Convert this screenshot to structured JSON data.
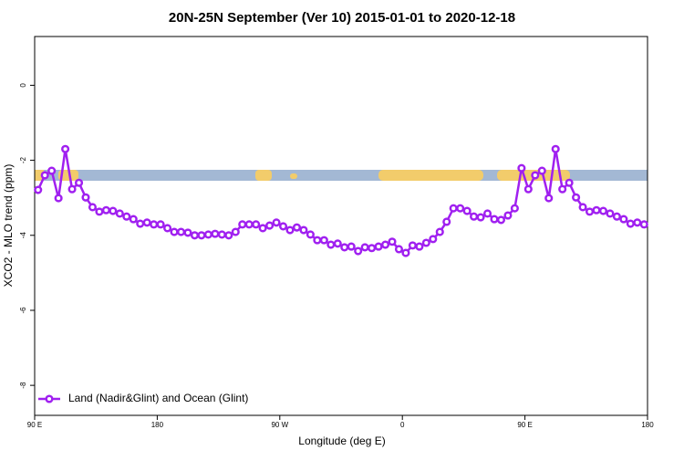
{
  "chart_data": {
    "type": "line",
    "title": "20N-25N September (Ver 10)   2015-01-01 to 2020-12-18",
    "x_label": "Longitude (deg E)",
    "y_label": "XCO2 - MLO trend (ppm)",
    "xlim": [
      90,
      540
    ],
    "ylim": [
      -8.8,
      1.3
    ],
    "xticks": [
      {
        "value": 90,
        "label": "90 E"
      },
      {
        "value": 180,
        "label": "180"
      },
      {
        "value": 270,
        "label": "90 W"
      },
      {
        "value": 360,
        "label": "0"
      },
      {
        "value": 450,
        "label": "90 E"
      },
      {
        "value": 540,
        "label": "180"
      }
    ],
    "yticks": [
      0,
      -2,
      -4,
      -6,
      -8
    ],
    "legend": "bottom-left",
    "x": [
      92.5,
      97.5,
      102.5,
      107.5,
      112.5,
      117.5,
      122.5,
      127.5,
      132.5,
      137.5,
      142.5,
      147.5,
      152.5,
      157.5,
      162.5,
      167.5,
      172.5,
      177.5,
      182.5,
      187.5,
      192.5,
      197.5,
      202.5,
      207.5,
      212.5,
      217.5,
      222.5,
      227.5,
      232.5,
      237.5,
      242.5,
      247.5,
      252.5,
      257.5,
      262.5,
      267.5,
      272.5,
      277.5,
      282.5,
      287.5,
      292.5,
      297.5,
      302.5,
      307.5,
      312.5,
      317.5,
      322.5,
      327.5,
      332.5,
      337.5,
      342.5,
      347.5,
      352.5,
      357.5,
      362.5,
      367.5,
      372.5,
      377.5,
      382.5,
      387.5,
      392.5,
      397.5,
      402.5,
      407.5,
      412.5,
      417.5,
      422.5,
      427.5,
      432.5,
      437.5,
      442.5,
      447.5,
      452.5,
      457.5,
      462.5,
      467.5,
      472.5,
      477.5,
      482.5,
      487.5,
      492.5,
      497.5,
      502.5,
      507.5,
      512.5,
      517.5,
      522.5,
      527.5,
      532.5,
      537.5
    ],
    "series": [
      {
        "name": "Land (Nadir&Glint) and Ocean (Glint)",
        "color": "#a020f0",
        "values": [
          -2.79,
          -2.4,
          -2.28,
          -3.01,
          -1.7,
          -2.77,
          -2.6,
          -2.99,
          -3.25,
          -3.37,
          -3.33,
          -3.35,
          -3.42,
          -3.5,
          -3.57,
          -3.69,
          -3.66,
          -3.71,
          -3.71,
          -3.81,
          -3.91,
          -3.91,
          -3.93,
          -4.0,
          -4.0,
          -3.98,
          -3.96,
          -3.98,
          -4.0,
          -3.91,
          -3.71,
          -3.71,
          -3.71,
          -3.81,
          -3.74,
          -3.66,
          -3.76,
          -3.86,
          -3.79,
          -3.86,
          -3.98,
          -4.13,
          -4.13,
          -4.25,
          -4.22,
          -4.32,
          -4.3,
          -4.42,
          -4.32,
          -4.34,
          -4.3,
          -4.25,
          -4.17,
          -4.37,
          -4.47,
          -4.27,
          -4.3,
          -4.2,
          -4.1,
          -3.91,
          -3.64,
          -3.28,
          -3.28,
          -3.35,
          -3.5,
          -3.52,
          -3.42,
          -3.57,
          -3.59,
          -3.47,
          -3.28,
          -2.21,
          -2.77,
          -2.4,
          -2.28,
          -3.01,
          -1.7,
          -2.77,
          -2.6,
          -2.99,
          -3.25,
          -3.37,
          -3.33,
          -3.35,
          -3.42,
          -3.5,
          -3.57,
          -3.69,
          -3.66,
          -3.71
        ]
      }
    ]
  }
}
